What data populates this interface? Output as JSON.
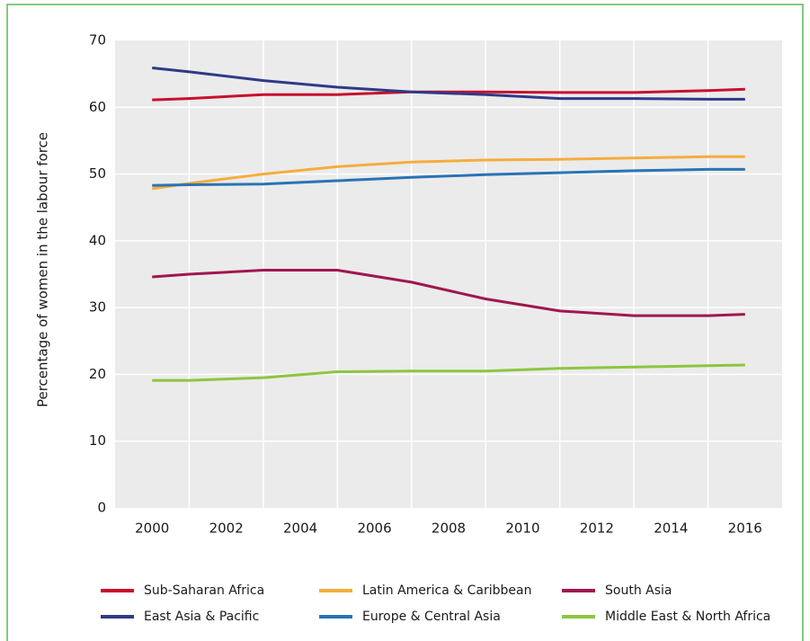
{
  "chart_data": {
    "type": "line",
    "ylabel": "Percentage of women in the labour force",
    "x": [
      2000,
      2001,
      2003,
      2005,
      2007,
      2009,
      2011,
      2013,
      2015,
      2016
    ],
    "xlim": [
      1999,
      2017
    ],
    "xticks": [
      2000,
      2002,
      2004,
      2006,
      2008,
      2010,
      2012,
      2014,
      2016
    ],
    "ylim": [
      0,
      70
    ],
    "yticks": [
      0,
      10,
      20,
      30,
      40,
      50,
      60,
      70
    ],
    "grid": true,
    "series": [
      {
        "name": "Sub-Saharan Africa",
        "color": "#c8102e",
        "values": [
          61.1,
          61.3,
          61.9,
          61.9,
          62.3,
          62.3,
          62.2,
          62.2,
          62.5,
          62.7
        ]
      },
      {
        "name": "East Asia & Pacific",
        "color": "#2e3a87",
        "values": [
          65.9,
          65.3,
          64.0,
          63.0,
          62.3,
          61.9,
          61.3,
          61.3,
          61.2,
          61.2
        ]
      },
      {
        "name": "Latin America & Caribbean",
        "color": "#f5ad3c",
        "values": [
          47.8,
          48.6,
          50.0,
          51.1,
          51.8,
          52.1,
          52.2,
          52.4,
          52.6,
          52.6
        ]
      },
      {
        "name": "Europe & Central Asia",
        "color": "#2a73b5",
        "values": [
          48.3,
          48.4,
          48.5,
          49.0,
          49.5,
          49.9,
          50.2,
          50.5,
          50.7,
          50.7
        ]
      },
      {
        "name": "South Asia",
        "color": "#a0174f",
        "values": [
          34.6,
          35.0,
          35.6,
          35.6,
          33.8,
          31.3,
          29.5,
          28.8,
          28.8,
          29.0
        ]
      },
      {
        "name": "Middle East & North Africa",
        "color": "#8cc63f",
        "values": [
          19.1,
          19.1,
          19.5,
          20.4,
          20.5,
          20.5,
          20.9,
          21.1,
          21.3,
          21.4
        ]
      }
    ]
  }
}
